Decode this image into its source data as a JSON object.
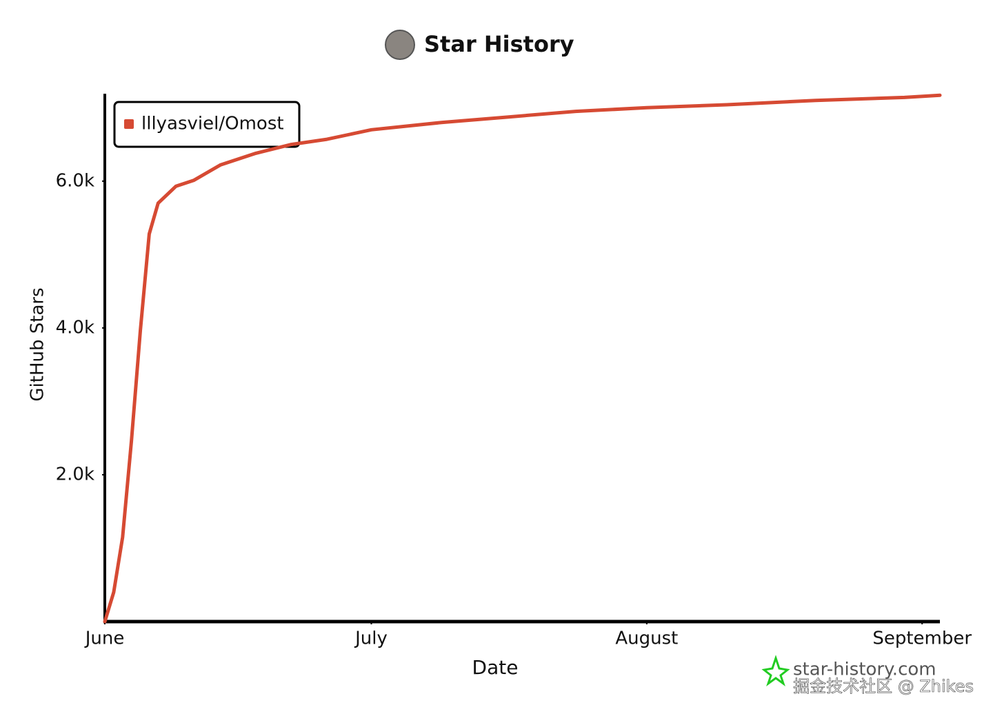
{
  "chart_data": {
    "type": "line",
    "title": "Star History",
    "xlabel": "Date",
    "ylabel": "GitHub Stars",
    "x": [
      0,
      1,
      2,
      3,
      4,
      5,
      6,
      8,
      10,
      13,
      17,
      21,
      25,
      30,
      38,
      45,
      53,
      61,
      70,
      80,
      90,
      94
    ],
    "series": [
      {
        "name": "lllyasviel/Omost",
        "color": "#d64a33",
        "values": [
          0,
          400,
          1150,
          2460,
          3960,
          5280,
          5700,
          5930,
          6010,
          6220,
          6380,
          6500,
          6570,
          6700,
          6800,
          6870,
          6950,
          7000,
          7040,
          7100,
          7140,
          7170
        ]
      }
    ],
    "xlim": [
      0,
      94
    ],
    "xticks": [
      {
        "value": 0,
        "label": "June"
      },
      {
        "value": 30,
        "label": "July"
      },
      {
        "value": 61,
        "label": "August"
      },
      {
        "value": 92,
        "label": "September"
      }
    ],
    "ylim": [
      0,
      7200
    ],
    "yticks": [
      {
        "value": 2000,
        "label": "2.0k"
      },
      {
        "value": 4000,
        "label": "4.0k"
      },
      {
        "value": 6000,
        "label": "6.0k"
      }
    ],
    "legend": "top-left",
    "annotations": [
      "star-history.com",
      "掘金技术社区 @ Zhikes"
    ]
  }
}
